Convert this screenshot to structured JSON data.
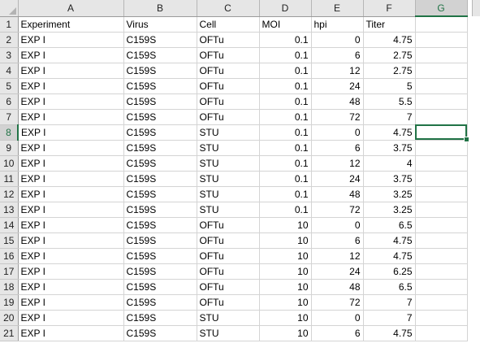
{
  "columns": [
    "A",
    "B",
    "C",
    "D",
    "E",
    "F",
    "G"
  ],
  "rows": [
    {
      "n": "1",
      "cells": [
        "Experiment",
        "Virus",
        "Cell",
        "MOI",
        "hpi",
        "Titer",
        ""
      ]
    },
    {
      "n": "2",
      "cells": [
        "EXP I",
        "C159S",
        "OFTu",
        "0.1",
        "0",
        "4.75",
        ""
      ]
    },
    {
      "n": "3",
      "cells": [
        "EXP I",
        "C159S",
        "OFTu",
        "0.1",
        "6",
        "2.75",
        ""
      ]
    },
    {
      "n": "4",
      "cells": [
        "EXP I",
        "C159S",
        "OFTu",
        "0.1",
        "12",
        "2.75",
        ""
      ]
    },
    {
      "n": "5",
      "cells": [
        "EXP I",
        "C159S",
        "OFTu",
        "0.1",
        "24",
        "5",
        ""
      ]
    },
    {
      "n": "6",
      "cells": [
        "EXP I",
        "C159S",
        "OFTu",
        "0.1",
        "48",
        "5.5",
        ""
      ]
    },
    {
      "n": "7",
      "cells": [
        "EXP I",
        "C159S",
        "OFTu",
        "0.1",
        "72",
        "7",
        ""
      ]
    },
    {
      "n": "8",
      "cells": [
        "EXP I",
        "C159S",
        "STU",
        "0.1",
        "0",
        "4.75",
        ""
      ]
    },
    {
      "n": "9",
      "cells": [
        "EXP I",
        "C159S",
        "STU",
        "0.1",
        "6",
        "3.75",
        ""
      ]
    },
    {
      "n": "10",
      "cells": [
        "EXP I",
        "C159S",
        "STU",
        "0.1",
        "12",
        "4",
        ""
      ]
    },
    {
      "n": "11",
      "cells": [
        "EXP I",
        "C159S",
        "STU",
        "0.1",
        "24",
        "3.75",
        ""
      ]
    },
    {
      "n": "12",
      "cells": [
        "EXP I",
        "C159S",
        "STU",
        "0.1",
        "48",
        "3.25",
        ""
      ]
    },
    {
      "n": "13",
      "cells": [
        "EXP I",
        "C159S",
        "STU",
        "0.1",
        "72",
        "3.25",
        ""
      ]
    },
    {
      "n": "14",
      "cells": [
        "EXP I",
        "C159S",
        "OFTu",
        "10",
        "0",
        "6.5",
        ""
      ]
    },
    {
      "n": "15",
      "cells": [
        "EXP I",
        "C159S",
        "OFTu",
        "10",
        "6",
        "4.75",
        ""
      ]
    },
    {
      "n": "16",
      "cells": [
        "EXP I",
        "C159S",
        "OFTu",
        "10",
        "12",
        "4.75",
        ""
      ]
    },
    {
      "n": "17",
      "cells": [
        "EXP I",
        "C159S",
        "OFTu",
        "10",
        "24",
        "6.25",
        ""
      ]
    },
    {
      "n": "18",
      "cells": [
        "EXP I",
        "C159S",
        "OFTu",
        "10",
        "48",
        "6.5",
        ""
      ]
    },
    {
      "n": "19",
      "cells": [
        "EXP I",
        "C159S",
        "OFTu",
        "10",
        "72",
        "7",
        ""
      ]
    },
    {
      "n": "20",
      "cells": [
        "EXP I",
        "C159S",
        "STU",
        "10",
        "0",
        "7",
        ""
      ]
    },
    {
      "n": "21",
      "cells": [
        "EXP I",
        "C159S",
        "STU",
        "10",
        "6",
        "4.75",
        ""
      ]
    }
  ],
  "selection": {
    "row_index": 7,
    "col_index": 6
  },
  "accent_color": "#217346"
}
